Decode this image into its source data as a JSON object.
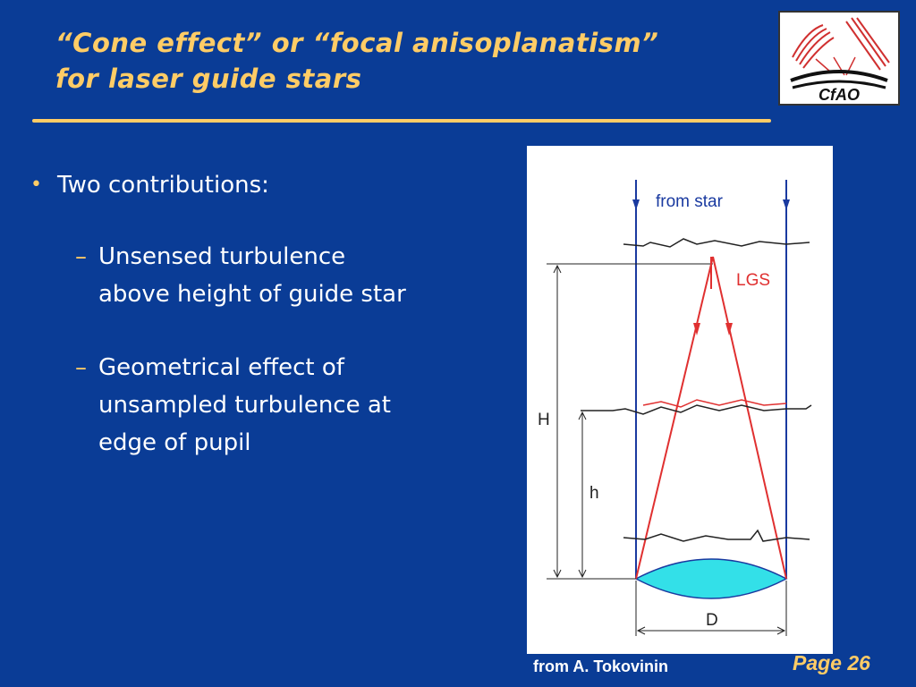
{
  "slide": {
    "title_line1": "“Cone effect” or “focal anisoplanatism”",
    "title_line2": "for laser guide stars",
    "bullet": "Two contributions:",
    "sub_bullets": [
      {
        "line1": "Unsensed turbulence",
        "line2": "above height of guide star"
      },
      {
        "line1": "Geometrical effect of",
        "line2": "unsampled turbulence at",
        "line3": "edge of pupil"
      }
    ],
    "dash": "–",
    "credit": "from A. Tokovinin",
    "page_label": "Page 26"
  },
  "figure": {
    "from_star": "from  star",
    "lgs": "LGS",
    "H": "H",
    "h": "h",
    "D": "D"
  },
  "logo": {
    "text": "CfAO"
  },
  "colors": {
    "background": "#0a3c96",
    "title": "#ffcc66",
    "star_lines": "#1a3aa0",
    "lgs_lines": "#e03030",
    "lens": "#33e0e8"
  }
}
